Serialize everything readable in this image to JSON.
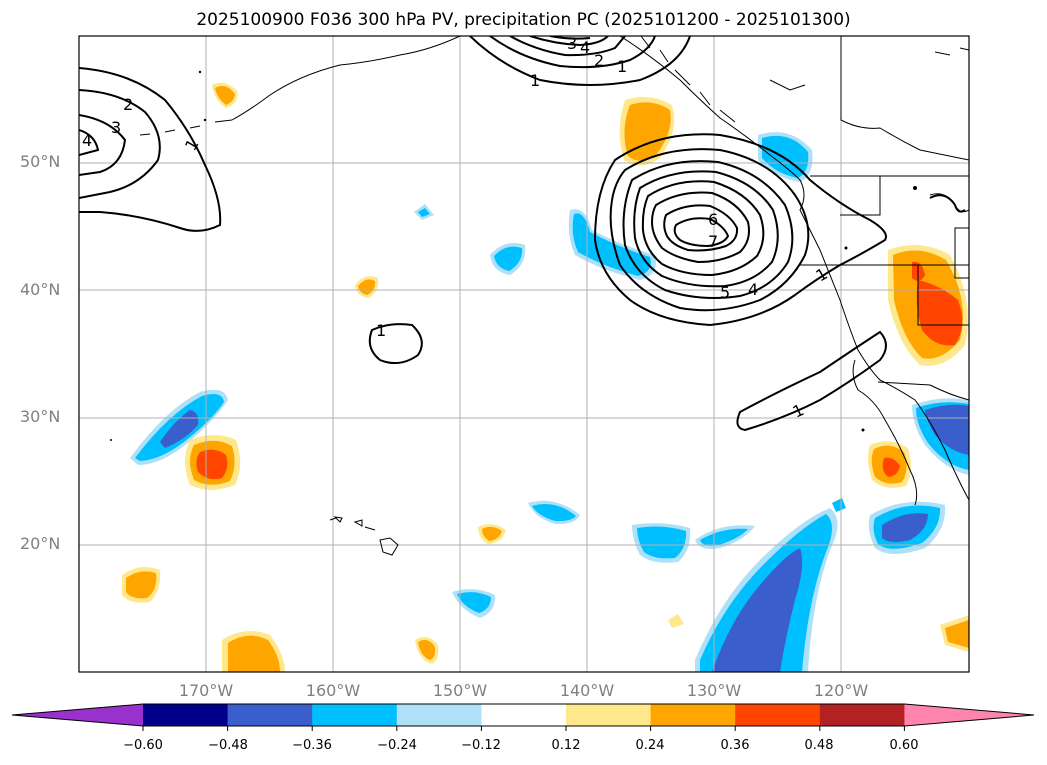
{
  "figure": {
    "title": "2025100900 F036 300 hPa PV, precipitation PC (2025101200 - 2025101300)"
  },
  "map": {
    "lat_labels": [
      "50°N",
      "40°N",
      "30°N",
      "20°N"
    ],
    "lon_labels": [
      "170°W",
      "160°W",
      "150°W",
      "140°W",
      "130°W",
      "120°W"
    ],
    "contour_labels": [
      "1",
      "2",
      "3",
      "4",
      "1",
      "1",
      "2",
      "3",
      "4",
      "5",
      "4",
      "6",
      "7",
      "1",
      "1",
      "1"
    ]
  },
  "colorbar": {
    "ticks": [
      "−0.60",
      "−0.48",
      "−0.36",
      "−0.24",
      "−0.12",
      "0.12",
      "0.24",
      "0.36",
      "0.48",
      "0.60"
    ],
    "colors": [
      "#9932CC",
      "#00008B",
      "#3A5FCD",
      "#00BFFF",
      "#AEE0F8",
      "#FFFFFF",
      "#FFE88C",
      "#FFA500",
      "#FF4500",
      "#B22222",
      "#FF85AD"
    ]
  }
}
